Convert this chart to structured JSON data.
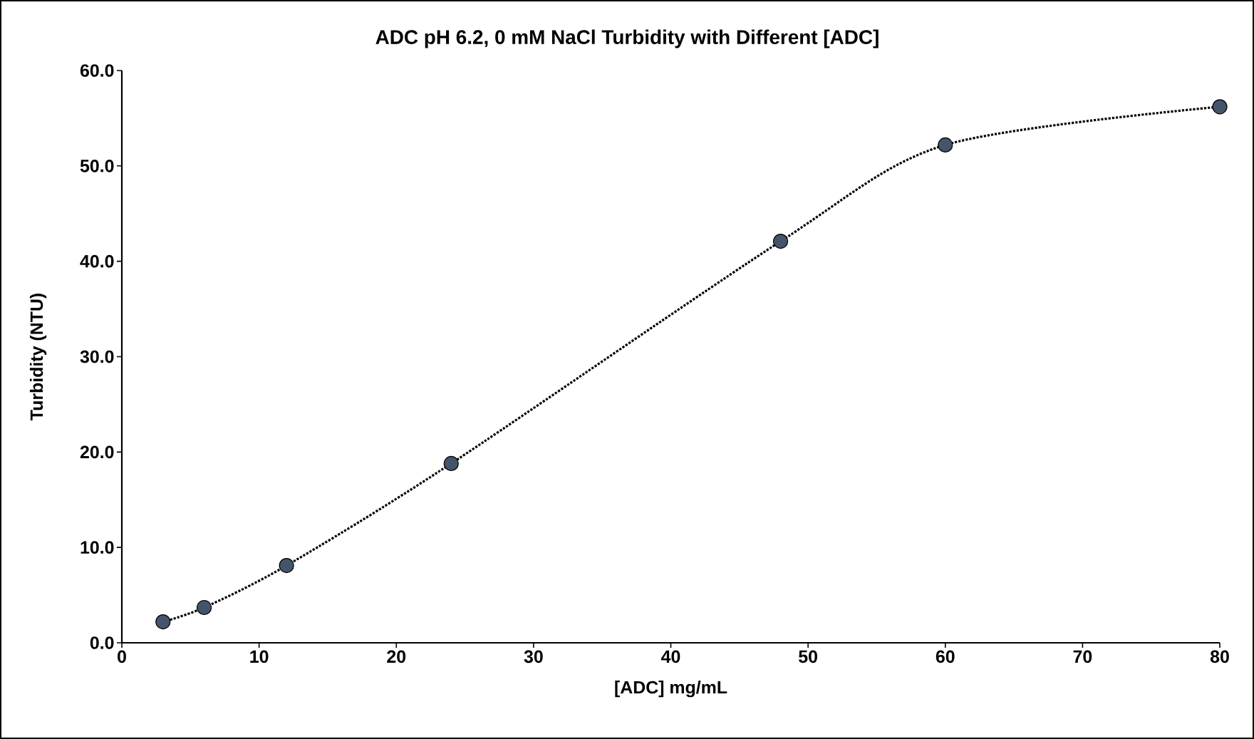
{
  "chart_data": {
    "type": "line",
    "title": "ADC pH 6.2, 0 mM NaCl Turbidity with Different [ADC]",
    "xlabel": "[ADC] mg/mL",
    "ylabel": "Turbidity (NTU)",
    "x": [
      3,
      6,
      12,
      24,
      48,
      60,
      80
    ],
    "series": [
      {
        "color": "#44546a",
        "values": [
          2.2,
          3.7,
          8.1,
          18.8,
          42.1,
          52.2,
          56.2
        ]
      }
    ],
    "xlim": [
      0,
      80
    ],
    "xticks": [
      0,
      10,
      20,
      30,
      40,
      50,
      60,
      70,
      80
    ],
    "ylim": [
      0,
      60
    ],
    "yticks": [
      {
        "value": 0,
        "label": "0.0"
      },
      {
        "value": 10,
        "label": "10.0"
      },
      {
        "value": 20,
        "label": "20.0"
      },
      {
        "value": 30,
        "label": "30.0"
      },
      {
        "value": 40,
        "label": "40.0"
      },
      {
        "value": 50,
        "label": "50.0"
      },
      {
        "value": 60,
        "label": "60.0"
      }
    ],
    "marker": "circle",
    "line_style": "dotted",
    "grid": false
  }
}
